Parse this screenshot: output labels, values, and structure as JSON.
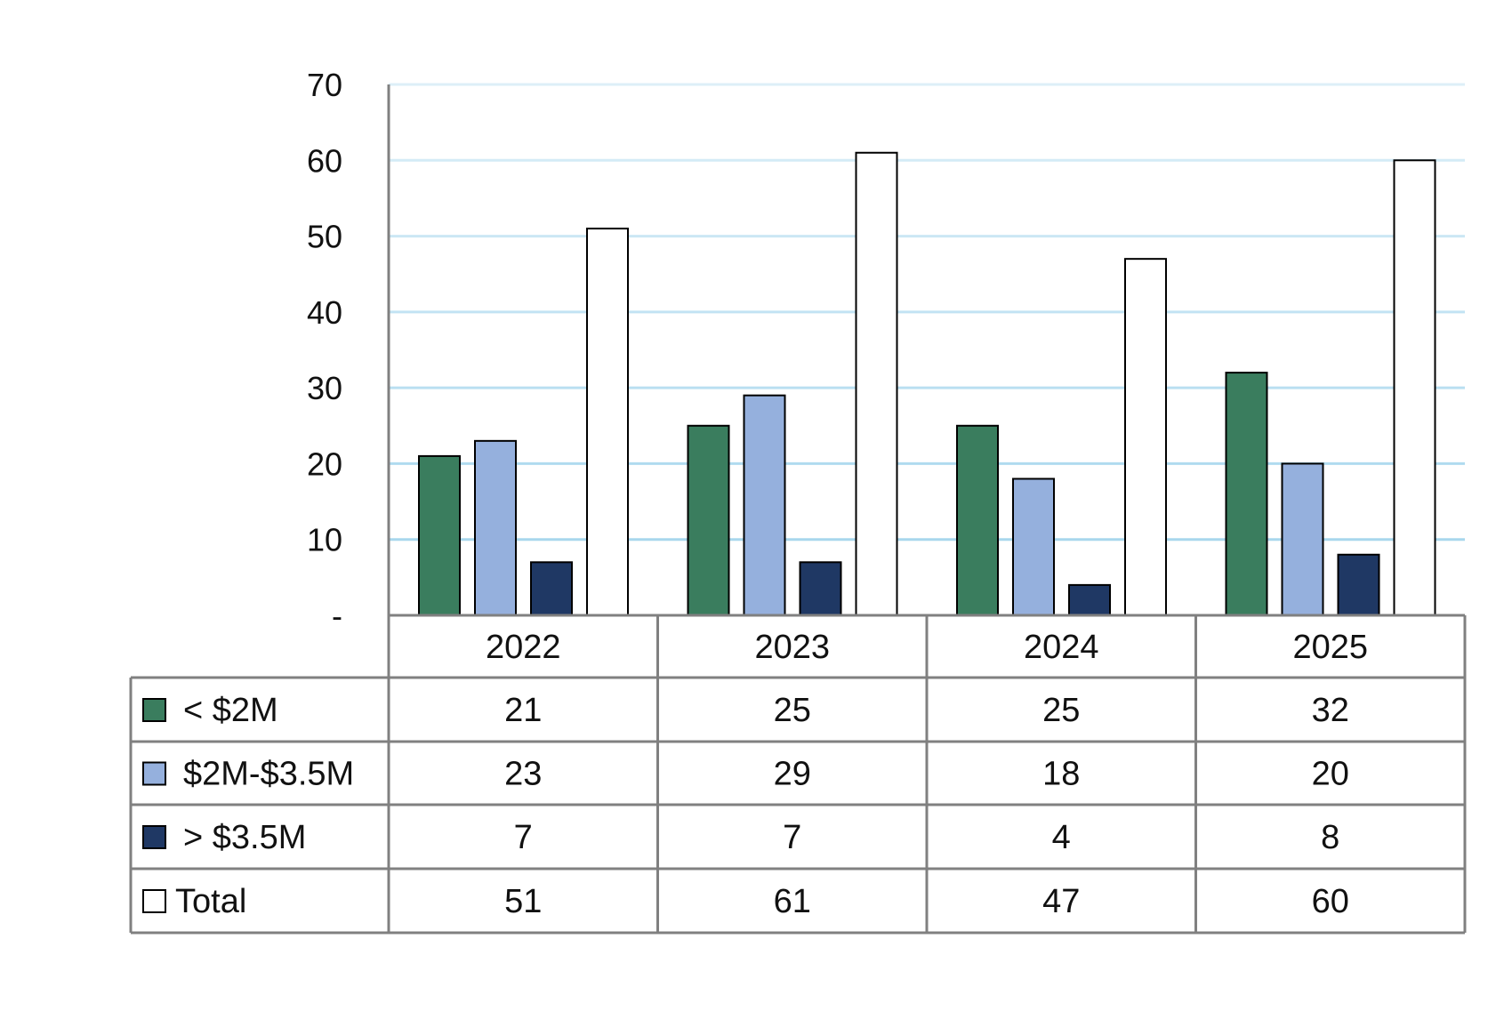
{
  "chart_data": {
    "type": "bar",
    "title": "",
    "xlabel": "",
    "ylabel": "",
    "ylim": [
      0,
      70
    ],
    "y_ticks": [
      {
        "value": 0,
        "label": "-"
      },
      {
        "value": 10,
        "label": "10"
      },
      {
        "value": 20,
        "label": "20"
      },
      {
        "value": 30,
        "label": "30"
      },
      {
        "value": 40,
        "label": "40"
      },
      {
        "value": 50,
        "label": "50"
      },
      {
        "value": 60,
        "label": "60"
      },
      {
        "value": 70,
        "label": "70"
      }
    ],
    "grid": true,
    "legend": "data-table",
    "categories": [
      "2022",
      "2023",
      "2024",
      "2025"
    ],
    "series": [
      {
        "name": "< $2M",
        "values": [
          21,
          25,
          25,
          32
        ],
        "color": "#3a7d5e"
      },
      {
        "name": "$2M-$3.5M",
        "values": [
          23,
          29,
          18,
          20
        ],
        "color": "#95b0dd"
      },
      {
        "name": "> $3.5M",
        "values": [
          7,
          7,
          4,
          8
        ],
        "color": "#1f3864"
      },
      {
        "name": "Total",
        "values": [
          51,
          61,
          47,
          60
        ],
        "color": "#ffffff"
      }
    ]
  },
  "colors": {
    "grid": "#9fd3ec",
    "axis": "#808080",
    "bar_outline": "#000000"
  }
}
